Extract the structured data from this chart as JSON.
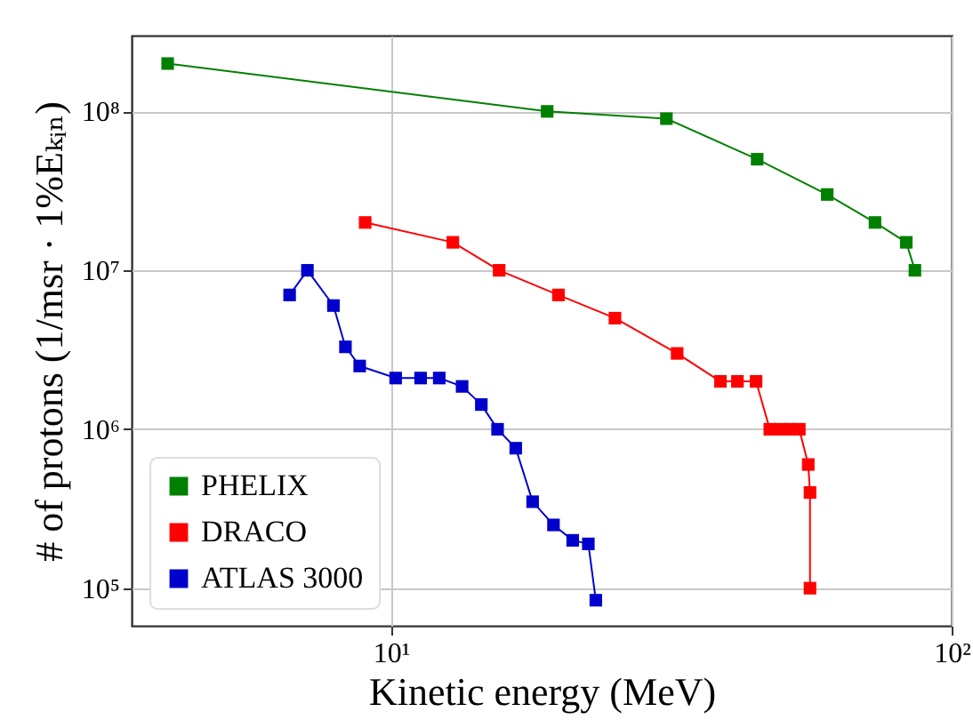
{
  "chart_data": {
    "type": "line",
    "xlabel": "Kinetic energy (MeV)",
    "ylabel": "# of protons (1/msr · 1%Eₖᵢₙ)",
    "log": "xy",
    "grid": true,
    "legend": "bottom left",
    "marker": "square",
    "line_style": "solid",
    "xlim": [
      3.45,
      100
    ],
    "ylim": [
      58000,
      300000000
    ],
    "xticks": [
      {
        "value": 10,
        "label": "10¹"
      },
      {
        "value": 100,
        "label": "10²"
      }
    ],
    "yticks": [
      {
        "value": 100000,
        "label": "10⁵"
      },
      {
        "value": 1000000,
        "label": "10⁶"
      },
      {
        "value": 10000000,
        "label": "10⁷"
      },
      {
        "value": 100000000,
        "label": "10⁸"
      }
    ],
    "series": [
      {
        "name": "PHELIX",
        "color": "#008000",
        "x": [
          4.0,
          19,
          31,
          45,
          60,
          73,
          83,
          86
        ],
        "values": [
          200000000,
          100000000,
          90000000,
          50000000,
          30000000,
          20000000,
          15000000,
          10000000
        ]
      },
      {
        "name": "DRACO",
        "color": "#ff0000",
        "x": [
          9.0,
          12.9,
          15.6,
          19.9,
          25.1,
          32.4,
          38.7,
          41.5,
          44.8,
          47.4,
          49.5,
          51.5,
          53.5,
          55.5,
          55.9,
          55.9
        ],
        "values": [
          20000000,
          15000000,
          10000000,
          7000000,
          5000000,
          3000000,
          2000000,
          2000000,
          2000000,
          1000000,
          1000000,
          1000000,
          1000000,
          600000,
          400000,
          100000
        ]
      },
      {
        "name": "ATLAS 3000",
        "color": "#0000cc",
        "x": [
          6.6,
          7.1,
          7.9,
          8.3,
          8.8,
          10.2,
          11.3,
          12.2,
          13.4,
          14.5,
          15.5,
          16.7,
          17.9,
          19.5,
          21.1,
          22.5,
          23.2
        ],
        "values": [
          7000000,
          10000000,
          6000000,
          3300000,
          2500000,
          2100000,
          2100000,
          2100000,
          1860000,
          1430000,
          1000000,
          760000,
          350000,
          250000,
          200000,
          190000,
          84000
        ]
      }
    ]
  }
}
